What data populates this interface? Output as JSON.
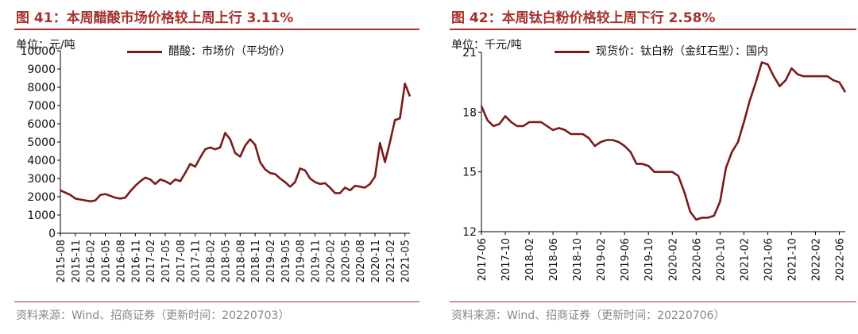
{
  "colors": {
    "title": "#a5322f",
    "line": "#7b1a1a",
    "axis": "#000000",
    "source": "#888888"
  },
  "left": {
    "title": "图 41：本周醋酸市场价格较上周上行 3.11%",
    "unit": "单位：元/吨",
    "legend": "醋酸：市场价（平均价）",
    "source": "资料来源：Wind、招商证券（更新时间：20220703）"
  },
  "right": {
    "title": "图 42：本周钛白粉价格较上周下行 2.58%",
    "unit": "单位：千元/吨",
    "legend": "现货价：钛白粉（金红石型）：国内",
    "source": "资料来源：Wind、招商证券（更新时间：20220706）"
  },
  "chart_data": [
    {
      "type": "line",
      "ylim": [
        0,
        10000
      ],
      "yticks": [
        0,
        1000,
        2000,
        3000,
        4000,
        5000,
        6000,
        7000,
        8000,
        9000,
        10000
      ],
      "xlim": [
        "2015-08",
        "2021-06"
      ],
      "xticks": [
        "2015-08",
        "2015-11",
        "2016-02",
        "2016-05",
        "2016-08",
        "2016-11",
        "2017-02",
        "2017-05",
        "2017-08",
        "2017-11",
        "2018-02",
        "2018-05",
        "2018-08",
        "2018-11",
        "2019-02",
        "2019-05",
        "2019-08",
        "2019-11",
        "2020-02",
        "2020-05",
        "2020-08",
        "2020-11",
        "2021-02",
        "2021-05"
      ],
      "series": [
        {
          "name": "醋酸：市场价（平均价）",
          "points": [
            [
              "2015-08",
              2350
            ],
            [
              "2015-10",
              2100
            ],
            [
              "2015-11",
              1900
            ],
            [
              "2016-01",
              1800
            ],
            [
              "2016-02",
              1750
            ],
            [
              "2016-03",
              1800
            ],
            [
              "2016-04",
              2100
            ],
            [
              "2016-05",
              2150
            ],
            [
              "2016-06",
              2050
            ],
            [
              "2016-07",
              1950
            ],
            [
              "2016-08",
              1900
            ],
            [
              "2016-09",
              1950
            ],
            [
              "2016-10",
              2300
            ],
            [
              "2016-11",
              2600
            ],
            [
              "2016-12",
              2850
            ],
            [
              "2017-01",
              3050
            ],
            [
              "2017-02",
              2950
            ],
            [
              "2017-03",
              2700
            ],
            [
              "2017-04",
              2950
            ],
            [
              "2017-05",
              2850
            ],
            [
              "2017-06",
              2700
            ],
            [
              "2017-07",
              2950
            ],
            [
              "2017-08",
              2850
            ],
            [
              "2017-09",
              3300
            ],
            [
              "2017-10",
              3800
            ],
            [
              "2017-11",
              3650
            ],
            [
              "2017-12",
              4150
            ],
            [
              "2018-01",
              4600
            ],
            [
              "2018-02",
              4700
            ],
            [
              "2018-03",
              4600
            ],
            [
              "2018-04",
              4700
            ],
            [
              "2018-05",
              5500
            ],
            [
              "2018-06",
              5150
            ],
            [
              "2018-07",
              4400
            ],
            [
              "2018-08",
              4200
            ],
            [
              "2018-09",
              4800
            ],
            [
              "2018-10",
              5150
            ],
            [
              "2018-11",
              4850
            ],
            [
              "2018-12",
              3900
            ],
            [
              "2019-01",
              3500
            ],
            [
              "2019-02",
              3300
            ],
            [
              "2019-03",
              3250
            ],
            [
              "2019-04",
              3000
            ],
            [
              "2019-05",
              2800
            ],
            [
              "2019-06",
              2550
            ],
            [
              "2019-07",
              2800
            ],
            [
              "2019-08",
              3550
            ],
            [
              "2019-09",
              3450
            ],
            [
              "2019-10",
              3000
            ],
            [
              "2019-11",
              2800
            ],
            [
              "2019-12",
              2700
            ],
            [
              "2020-01",
              2750
            ],
            [
              "2020-02",
              2500
            ],
            [
              "2020-03",
              2200
            ],
            [
              "2020-04",
              2200
            ],
            [
              "2020-05",
              2500
            ],
            [
              "2020-06",
              2350
            ],
            [
              "2020-07",
              2600
            ],
            [
              "2020-08",
              2550
            ],
            [
              "2020-09",
              2500
            ],
            [
              "2020-10",
              2700
            ],
            [
              "2020-11",
              3100
            ],
            [
              "2020-12",
              4950
            ],
            [
              "2021-01",
              3900
            ],
            [
              "2021-02",
              5000
            ],
            [
              "2021-03",
              6200
            ],
            [
              "2021-04",
              6300
            ],
            [
              "2021-05",
              8200
            ],
            [
              "2021-06",
              7500
            ]
          ]
        }
      ]
    },
    {
      "type": "line",
      "ylim": [
        12,
        21
      ],
      "yticks": [
        12,
        15,
        18,
        21
      ],
      "xlim": [
        "2017-06",
        "2022-07"
      ],
      "xticks": [
        "2017-06",
        "2017-10",
        "2018-02",
        "2018-06",
        "2018-10",
        "2019-02",
        "2019-06",
        "2019-10",
        "2020-02",
        "2020-06",
        "2020-10",
        "2021-02",
        "2021-06",
        "2021-10",
        "2022-02",
        "2022-06"
      ],
      "series": [
        {
          "name": "现货价：钛白粉（金红石型）：国内",
          "points": [
            [
              "2017-06",
              18.3
            ],
            [
              "2017-07",
              17.6
            ],
            [
              "2017-08",
              17.3
            ],
            [
              "2017-09",
              17.4
            ],
            [
              "2017-10",
              17.8
            ],
            [
              "2017-11",
              17.5
            ],
            [
              "2017-12",
              17.3
            ],
            [
              "2018-01",
              17.3
            ],
            [
              "2018-02",
              17.5
            ],
            [
              "2018-03",
              17.5
            ],
            [
              "2018-04",
              17.5
            ],
            [
              "2018-05",
              17.3
            ],
            [
              "2018-06",
              17.1
            ],
            [
              "2018-07",
              17.2
            ],
            [
              "2018-08",
              17.1
            ],
            [
              "2018-09",
              16.9
            ],
            [
              "2018-10",
              16.9
            ],
            [
              "2018-11",
              16.9
            ],
            [
              "2018-12",
              16.7
            ],
            [
              "2019-01",
              16.3
            ],
            [
              "2019-02",
              16.5
            ],
            [
              "2019-03",
              16.6
            ],
            [
              "2019-04",
              16.6
            ],
            [
              "2019-05",
              16.5
            ],
            [
              "2019-06",
              16.3
            ],
            [
              "2019-07",
              16.0
            ],
            [
              "2019-08",
              15.4
            ],
            [
              "2019-09",
              15.4
            ],
            [
              "2019-10",
              15.3
            ],
            [
              "2019-11",
              15.0
            ],
            [
              "2019-12",
              15.0
            ],
            [
              "2020-01",
              15.0
            ],
            [
              "2020-02",
              15.0
            ],
            [
              "2020-03",
              14.8
            ],
            [
              "2020-04",
              14.0
            ],
            [
              "2020-05",
              13.0
            ],
            [
              "2020-06",
              12.6
            ],
            [
              "2020-07",
              12.7
            ],
            [
              "2020-08",
              12.7
            ],
            [
              "2020-09",
              12.8
            ],
            [
              "2020-10",
              13.5
            ],
            [
              "2020-11",
              15.2
            ],
            [
              "2020-12",
              16.0
            ],
            [
              "2021-01",
              16.5
            ],
            [
              "2021-02",
              17.5
            ],
            [
              "2021-03",
              18.6
            ],
            [
              "2021-04",
              19.5
            ],
            [
              "2021-05",
              20.5
            ],
            [
              "2021-06",
              20.4
            ],
            [
              "2021-07",
              19.8
            ],
            [
              "2021-08",
              19.3
            ],
            [
              "2021-09",
              19.6
            ],
            [
              "2021-10",
              20.2
            ],
            [
              "2021-11",
              19.9
            ],
            [
              "2021-12",
              19.8
            ],
            [
              "2022-01",
              19.8
            ],
            [
              "2022-02",
              19.8
            ],
            [
              "2022-03",
              19.8
            ],
            [
              "2022-04",
              19.8
            ],
            [
              "2022-05",
              19.6
            ],
            [
              "2022-06",
              19.5
            ],
            [
              "2022-07",
              19.0
            ]
          ]
        }
      ]
    }
  ]
}
